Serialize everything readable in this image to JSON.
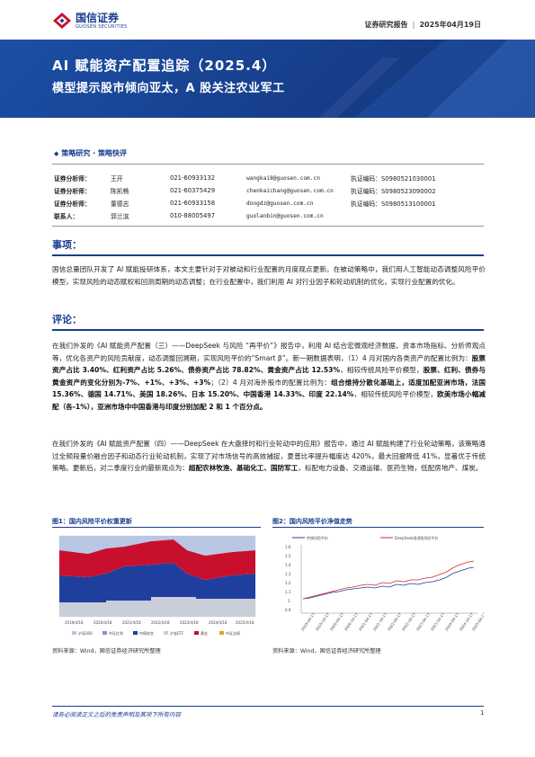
{
  "header": {
    "logo_cn": "国信证券",
    "logo_en": "GUOSEN SECURITIES",
    "report_type": "证券研究报告",
    "date": "2025年04月19日"
  },
  "banner": {
    "title": "AI 赋能资产配置追踪（2025.4）",
    "subtitle": "模型提示股市倾向亚太，A 股关注农业军工"
  },
  "category": "策略研究 · 策略快评",
  "analysts": [
    {
      "role": "证券分析师：",
      "name": "王开",
      "phone": "021-60933132",
      "email": "wangkai8@guosen.com.cn",
      "license": "执证编码：S0980521030001"
    },
    {
      "role": "证券分析师：",
      "name": "陈凯畅",
      "phone": "021-60375429",
      "email": "chenkaichang@guosen.com.cn",
      "license": "执证编码：S0980523090002"
    },
    {
      "role": "证券分析师：",
      "name": "董德志",
      "phone": "021-60933158",
      "email": "dongdz@guosen.com.cn",
      "license": "执证编码：S0980513100001"
    },
    {
      "role": "联系人：",
      "name": "郭兰滨",
      "phone": "010-88005497",
      "email": "guolanbin@guosen.com.cn",
      "license": ""
    }
  ],
  "section1": {
    "heading": "事项：",
    "text": "国信总量团队开发了 AI 赋能投研体系，本文主要针对于对被动和行业配置的月度观点更新。在被动策略中，我们用人工智能动态调整风险平价模型，实现风险的动态赋权和回测周期的动态调整；在行业配置中，我们利用 AI 对行业因子和轮动机制的优化，实现行业配置的优化。"
  },
  "section2": {
    "heading": "评论：",
    "p1": {
      "a": "在我们外发的《AI 赋能资产配置（三）——DeepSeek 与风险 “再平价”》报告中，利用 AI 结合宏微观经济数据、资本市场指标、分析师观点等，优化各资产的风险贡献度，动态调整回溯期，实现风险平价的“Smart β”。新一期数据表明，（1）4 月对国内各类资产的配置比例为：",
      "b": "股票资产占比 3.40%、红利资产占比 5.26%、债券资产占比 78.82%、黄金资产占比 12.53%",
      "c": "，相较传统风险平价模型，",
      "d": "股票、红利、债券与黄金资产的变化分别为-7%、+1%、+3%、+3%",
      "e": "；（2）4 月对海外股市的配置比例为：",
      "f": "组合维持分散化基础上，适度加配亚洲市场，法国 15.36%、德国 14.71%、美国 18.26%、日本 15.20%、中国香港 14.33%、印度 22.14%",
      "g": "，相较传统风险平价模型，",
      "h": "欧美市场小幅减配（各-1%），亚洲市场中中国香港与印度分别加配 2 和 1 个百分点。"
    },
    "p2": {
      "a": "在我们外发的《AI 赋能资产配置（四）——DeepSeek 在大盘择时和行业轮动中的应用》报告中，通过 AI 赋能构建了行业轮动策略，该策略通过全频段量价融合因子和动态行业轮动机制，实现了对市场信号的高效捕捉，夏普比率提升幅度达 420%，最大回撤降低 41%，显著优于传统策略。更新后，对二季度行业的最新观点为：",
      "b": "超配农林牧渔、基础化工、国防军工",
      "c": "，标配电力设备、交通运输、医药生物，低配房地产、煤炭。"
    }
  },
  "figures": {
    "fig1": {
      "title": "图1：国内风险平价权重更新",
      "source": "资料来源：Wind，国信证券经济研究所整理",
      "x_ticks": [
        "2019/4/18",
        "2020/4/18",
        "2021/4/18",
        "2022/4/18",
        "2023/4/18",
        "2024/4/18",
        "2025/4/18"
      ],
      "legend": [
        "沪深300",
        "中证红利",
        "中债综合",
        "沪金ETF",
        "黄金",
        "中证全债"
      ]
    },
    "fig2": {
      "title": "图2：国内风险平价净值走势",
      "source": "资料来源：Wind，国信证券经济研究所整理",
      "legend": [
        "传统风险平价",
        "DeepSeek改进版风险平价"
      ],
      "y_ticks": [
        "1.6",
        "1.5",
        "1.4",
        "1.3",
        "1.2",
        "1.1",
        "1",
        "0.9"
      ],
      "x_ticks": [
        "2019-04-17",
        "2019-10-17",
        "2020-04-17",
        "2020-10-17",
        "2021-04-17",
        "2021-10-17",
        "2022-04-17",
        "2022-10-17",
        "2023-04-17",
        "2023-10-17",
        "2024-04-17",
        "2024-10-17",
        "2025-04-17"
      ],
      "colors": {
        "traditional": "#1f3f9e",
        "deepseek": "#d62728"
      }
    }
  },
  "footer": {
    "note": "请务必阅读正文之后的免责声明及其项下所有内容",
    "page": "1"
  }
}
